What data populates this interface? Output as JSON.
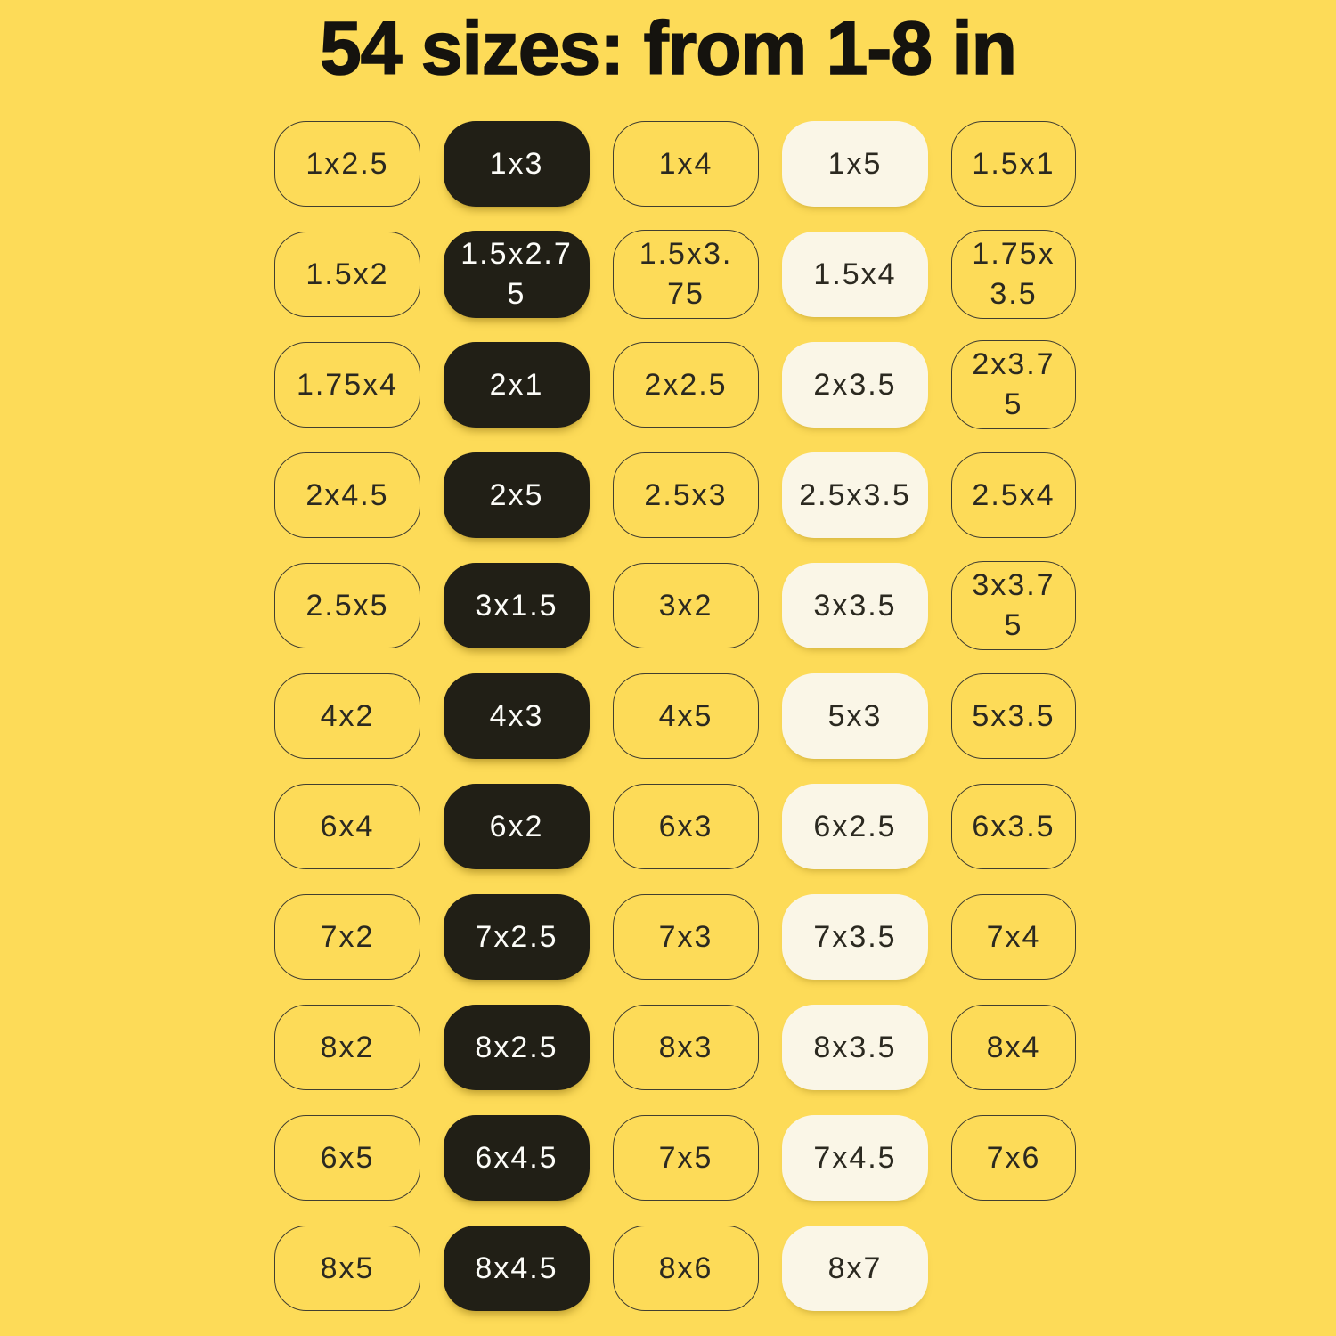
{
  "title": "54 sizes: from 1-8 in",
  "colors": {
    "background": "#FDDB58",
    "title_text": "#15130e",
    "pill_dark_bg": "#211F16",
    "pill_dark_text": "#FCFCF8",
    "pill_cream_bg": "#FAF6E7",
    "pill_outline_border": "#413e30",
    "pill_text": "#2b2920"
  },
  "grid": {
    "column_variants": [
      "outline",
      "dark",
      "outline",
      "cream",
      "outline"
    ],
    "rows": [
      [
        "1x2.5",
        "1x3",
        "1x4",
        "1x5",
        "1.5x1"
      ],
      [
        "1.5x2",
        "1.5x2.75",
        "1.5x3.75",
        "1.5x4",
        "1.75x3.5"
      ],
      [
        "1.75x4",
        "2x1",
        "2x2.5",
        "2x3.5",
        "2x3.75"
      ],
      [
        "2x4.5",
        "2x5",
        "2.5x3",
        "2.5x3.5",
        "2.5x4"
      ],
      [
        "2.5x5",
        "3x1.5",
        "3x2",
        "3x3.5",
        "3x3.75"
      ],
      [
        "4x2",
        "4x3",
        "4x5",
        "5x3",
        "5x3.5"
      ],
      [
        "6x4",
        "6x2",
        "6x3",
        "6x2.5",
        "6x3.5"
      ],
      [
        "7x2",
        "7x2.5",
        "7x3",
        "7x3.5",
        "7x4"
      ],
      [
        "8x2",
        "8x2.5",
        "8x3",
        "8x3.5",
        "8x4"
      ],
      [
        "6x5",
        "6x4.5",
        "7x5",
        "7x4.5",
        "7x6"
      ],
      [
        "8x5",
        "8x4.5",
        "8x6",
        "8x7",
        null
      ]
    ]
  }
}
